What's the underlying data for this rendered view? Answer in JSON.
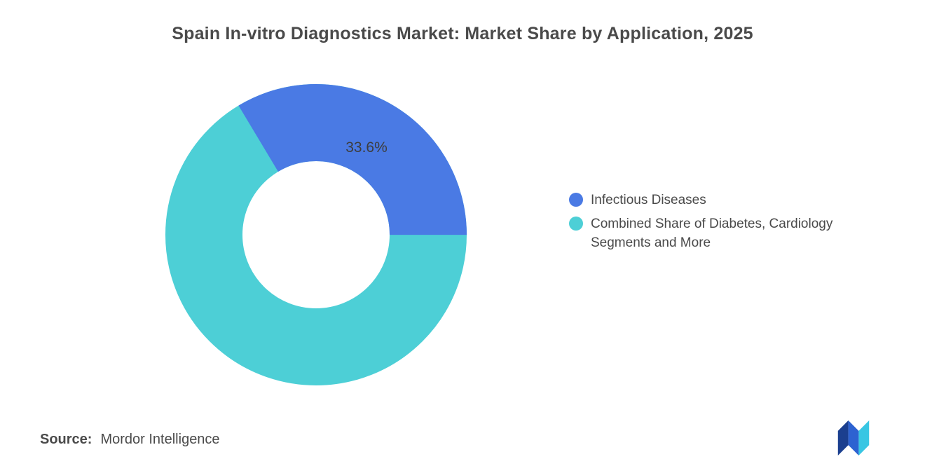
{
  "chart_data": {
    "type": "pie",
    "donut": true,
    "title": "Spain In-vitro Diagnostics Market: Market Share by Application, 2025",
    "legend_position": "right",
    "segments": [
      {
        "label": "Infectious Diseases",
        "value": 33.6,
        "data_label": "33.6%",
        "color": "#4a7ae4"
      },
      {
        "label": "Combined Share of Diabetes, Cardiology Segments and More",
        "value": 66.4,
        "data_label": "",
        "color": "#4dcfd6"
      }
    ]
  },
  "source": {
    "label": "Source:",
    "value": "Mordor Intelligence"
  },
  "logo_name": "mordor-intelligence-logo",
  "colors": {
    "title_text": "#4a4a4a",
    "body_text": "#4a4a4a",
    "data_label_text": "#3d3d3d",
    "background": "#ffffff",
    "logo_navy": "#1b3f8f",
    "logo_blue": "#2d62d1",
    "logo_cyan": "#38c6e3"
  }
}
